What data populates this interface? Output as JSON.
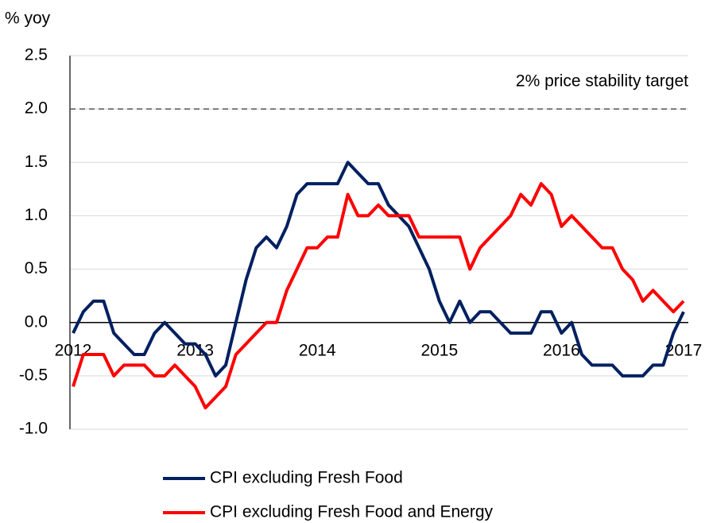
{
  "chart_data": {
    "type": "line",
    "y_label": "% yoy",
    "categories": [
      "2012",
      null,
      null,
      null,
      null,
      null,
      null,
      null,
      null,
      null,
      null,
      null,
      "2013",
      null,
      null,
      null,
      null,
      null,
      null,
      null,
      null,
      null,
      null,
      null,
      "2014",
      null,
      null,
      null,
      null,
      null,
      null,
      null,
      null,
      null,
      null,
      null,
      "2015",
      null,
      null,
      null,
      null,
      null,
      null,
      null,
      null,
      null,
      null,
      null,
      "2016",
      null,
      null,
      null,
      null,
      null,
      null,
      null,
      null,
      null,
      null,
      null,
      "2017"
    ],
    "series": [
      {
        "name": "CPI excluding Fresh Food",
        "color": "#002060",
        "values": [
          -0.1,
          0.1,
          0.2,
          0.2,
          -0.1,
          -0.2,
          -0.3,
          -0.3,
          -0.1,
          0.0,
          -0.1,
          -0.2,
          -0.2,
          -0.3,
          -0.5,
          -0.4,
          0.0,
          0.4,
          0.7,
          0.8,
          0.7,
          0.9,
          1.2,
          1.3,
          1.3,
          1.3,
          1.3,
          1.5,
          1.4,
          1.3,
          1.3,
          1.1,
          1.0,
          0.9,
          0.7,
          0.5,
          0.2,
          0.0,
          0.2,
          0.0,
          0.1,
          0.1,
          0.0,
          -0.1,
          -0.1,
          -0.1,
          0.1,
          0.1,
          -0.1,
          0.0,
          -0.3,
          -0.4,
          -0.4,
          -0.4,
          -0.5,
          -0.5,
          -0.5,
          -0.4,
          -0.4,
          -0.1,
          0.1
        ]
      },
      {
        "name": "CPI excluding Fresh Food and Energy",
        "color": "#ff0000",
        "values": [
          -0.6,
          -0.3,
          -0.3,
          -0.3,
          -0.5,
          -0.4,
          -0.4,
          -0.4,
          -0.5,
          -0.5,
          -0.4,
          -0.5,
          -0.6,
          -0.8,
          -0.7,
          -0.6,
          -0.3,
          -0.2,
          -0.1,
          0.0,
          0.0,
          0.3,
          0.5,
          0.7,
          0.7,
          0.8,
          0.8,
          1.2,
          1.0,
          1.0,
          1.1,
          1.0,
          1.0,
          1.0,
          0.8,
          0.8,
          0.8,
          0.8,
          0.8,
          0.5,
          0.7,
          0.8,
          0.9,
          1.0,
          1.2,
          1.1,
          1.3,
          1.2,
          0.9,
          1.0,
          0.9,
          0.8,
          0.7,
          0.7,
          0.5,
          0.4,
          0.2,
          0.3,
          0.2,
          0.1,
          0.2
        ]
      }
    ],
    "ylim": [
      -1,
      2.5
    ],
    "yticks": [
      {
        "value": -1,
        "label": "-1.0"
      },
      -0.5,
      {
        "value": 0,
        "label": "0.0"
      },
      0.5,
      {
        "value": 1,
        "label": "1.0"
      },
      1.5,
      {
        "value": 2,
        "label": "2.0"
      },
      2.5
    ],
    "reference_line": {
      "value": 2,
      "label": "2% price stability target"
    },
    "grid": true,
    "legend": "bottom"
  }
}
